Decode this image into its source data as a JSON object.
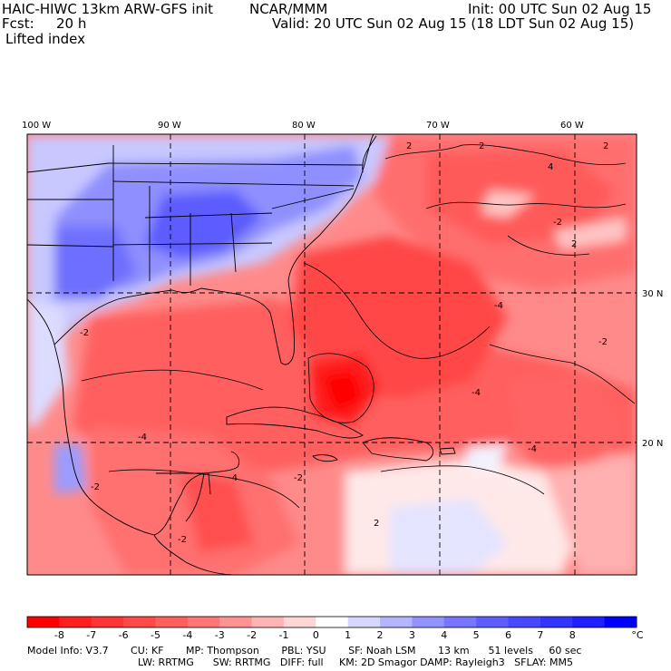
{
  "header": {
    "model": "HAIC-HIWC 13km ARW-GFS init",
    "org": "NCAR/MMM",
    "init": "Init: 00 UTC Sun 02 Aug 15",
    "fcst_label": "Fcst:",
    "fcst_value": "20 h",
    "valid": "Valid: 20 UTC Sun 02 Aug 15 (18 LDT Sun 02 Aug 15)",
    "field": "Lifted index"
  },
  "map": {
    "lon_labels": [
      "100 W",
      "90 W",
      "80 W",
      "70 W",
      "60 W"
    ],
    "lat_labels": [
      "30 N",
      "20 N"
    ],
    "contour_labels": [
      "2",
      "2",
      "2",
      "4",
      "2",
      "-2",
      "-2",
      "-4",
      "-4",
      "-2",
      "-4",
      "-2",
      "-4",
      "-4",
      "-2",
      "-2",
      "2"
    ]
  },
  "colorbar": {
    "unit": "°C",
    "ticks": [
      "-8",
      "-7",
      "-6",
      "-5",
      "-4",
      "-3",
      "-2",
      "-1",
      "0",
      "1",
      "2",
      "3",
      "4",
      "5",
      "6",
      "7",
      "8"
    ],
    "colors": [
      "#ff0000",
      "#ff1f1f",
      "#ff3434",
      "#ff4848",
      "#ff5e5e",
      "#ff7676",
      "#ff9393",
      "#ffb4b4",
      "#ffd6d6",
      "#ffffff",
      "#d6d6ff",
      "#b4b4ff",
      "#9393ff",
      "#7676ff",
      "#5e5eff",
      "#4848ff",
      "#3434ff",
      "#1f1fff",
      "#0000ff"
    ]
  },
  "model_info": {
    "line1": "Model Info: V3.7       CU: KF       MP: Thompson       PBL: YSU       SF: Noah LSM       13 km      51 levels     60 sec",
    "line2": "LW: RRTMG      SW: RRTMG   DIFF: full     KM: 2D Smagor DAMP: Rayleigh3   SFLAY: MM5"
  }
}
